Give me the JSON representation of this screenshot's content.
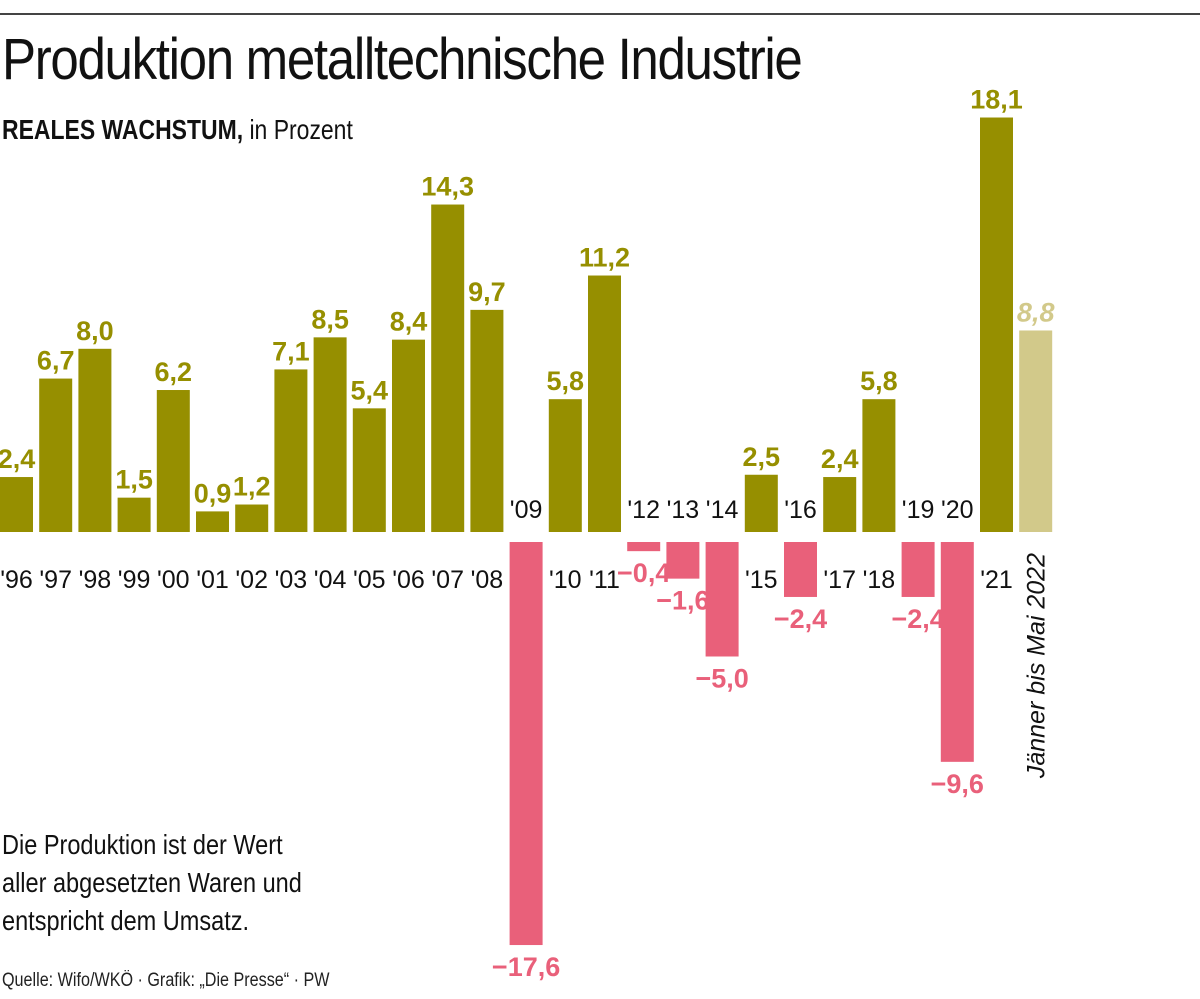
{
  "header": {
    "title": "Produktion metalltechnische Industrie",
    "subtitle_bold": "REALES WACHSTUM,",
    "subtitle_rest": " in Prozent"
  },
  "note": {
    "lines": [
      "Die Produktion ist der Wert",
      "aller abgesetzten Waren und",
      "entspricht dem Umsatz."
    ]
  },
  "source": "Quelle: Wifo/WKÖ · Grafik: „Die Presse“ · PW",
  "colors": {
    "positive": "#968f00",
    "negative": "#e9607a",
    "partial": "#d2c98a",
    "text": "#111111"
  },
  "chart_data": {
    "type": "bar",
    "title": "Produktion metalltechnische Industrie",
    "subtitle": "REALES WACHSTUM, in Prozent",
    "xlabel": "",
    "ylabel": "Prozent",
    "ylim": [
      -17.6,
      18.1
    ],
    "grid": false,
    "legend": "none",
    "categories": [
      "'96",
      "'97",
      "'98",
      "'99",
      "'00",
      "'01",
      "'02",
      "'03",
      "'04",
      "'05",
      "'06",
      "'07",
      "'08",
      "'09",
      "'10",
      "'11",
      "'12",
      "'13",
      "'14",
      "'15",
      "'16",
      "'17",
      "'18",
      "'19",
      "'20",
      "'21",
      "Jänner bis Mai 2022"
    ],
    "values": [
      2.4,
      6.7,
      8.0,
      1.5,
      6.2,
      0.9,
      1.2,
      7.1,
      8.5,
      5.4,
      8.4,
      14.3,
      9.7,
      -17.6,
      5.8,
      11.2,
      -0.4,
      -1.6,
      -5.0,
      2.5,
      -2.4,
      2.4,
      5.8,
      -2.4,
      -9.6,
      18.1,
      8.8
    ],
    "value_labels": [
      "2,4",
      "6,7",
      "8,0",
      "1,5",
      "6,2",
      "0,9",
      "1,2",
      "7,1",
      "8,5",
      "5,4",
      "8,4",
      "14,3",
      "9,7",
      "−17,6",
      "5,8",
      "11,2",
      "−0,4",
      "−1,6",
      "−5,0",
      "2,5",
      "−2,4",
      "2,4",
      "5,8",
      "−2,4",
      "−9,6",
      "18,1",
      "8,8"
    ],
    "partial_last": true,
    "annotations": [
      "Jänner bis Mai 2022"
    ]
  }
}
